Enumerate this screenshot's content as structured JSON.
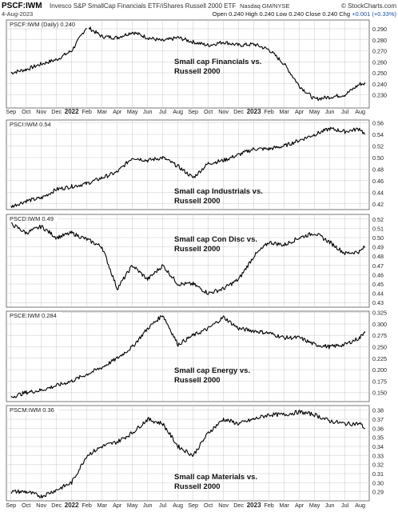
{
  "header": {
    "symbol": "PSCF:IWM",
    "description": "Invesco S&P SmallCap Financials ETF/iShares Russell 2000 ETF",
    "exchange": "Nasdaq GM/NYSE",
    "watermark": "© StockCharts.com",
    "date": "4-Aug-2023",
    "quote": {
      "open_label": "Open",
      "open": "0.240",
      "high_label": "High",
      "high": "0.240",
      "low_label": "Low",
      "low": "0.240",
      "close_label": "Close",
      "close": "0.240",
      "chg_label": "Chg",
      "chg": "+0.001 (+0.33%)"
    }
  },
  "colors": {
    "line": "#000000",
    "grid": "#c8c8c8",
    "border": "#555555",
    "quote_up": "#1a4fa0"
  },
  "x_axis": {
    "labels": [
      "Sep",
      "Oct",
      "Nov",
      "Dec",
      "2022",
      "Feb",
      "Mar",
      "Apr",
      "May",
      "Jun",
      "Jul",
      "Aug",
      "Sep",
      "Oct",
      "Nov",
      "Dec",
      "2023",
      "Feb",
      "Mar",
      "Apr",
      "May",
      "Jun",
      "Jul",
      "Aug"
    ],
    "bold_labels": [
      "2022",
      "2023"
    ]
  },
  "chart_data": [
    {
      "type": "line",
      "legend": "PSCF:IWM (Daily) 0.240",
      "annotation": [
        "Small cap Financials vs.",
        "Russell 2000"
      ],
      "ylim": [
        0.218,
        0.298
      ],
      "y_ticks": [
        0.23,
        0.24,
        0.25,
        0.26,
        0.27,
        0.28,
        0.29
      ],
      "y_tick_labels": [
        "0.230",
        "0.240",
        "0.250",
        "0.260",
        "0.270",
        "0.280",
        "0.290"
      ],
      "x": [
        0,
        1,
        2,
        3,
        4,
        5,
        6,
        7,
        8,
        9,
        10,
        11,
        12,
        13,
        14,
        15,
        16,
        17,
        18,
        19,
        20,
        21,
        22,
        23,
        23.3
      ],
      "values": [
        0.25,
        0.253,
        0.258,
        0.262,
        0.27,
        0.292,
        0.283,
        0.282,
        0.287,
        0.282,
        0.279,
        0.282,
        0.278,
        0.275,
        0.278,
        0.275,
        0.276,
        0.271,
        0.258,
        0.238,
        0.226,
        0.228,
        0.23,
        0.24,
        0.24
      ]
    },
    {
      "type": "line",
      "legend": "PSCI:IWM 0.54",
      "annotation": [
        "Small cap Industrials vs.",
        "Russell 2000"
      ],
      "ylim": [
        0.41,
        0.565
      ],
      "y_ticks": [
        0.42,
        0.44,
        0.46,
        0.48,
        0.5,
        0.52,
        0.54,
        0.56
      ],
      "y_tick_labels": [
        "0.42",
        "0.44",
        "0.46",
        "0.48",
        "0.50",
        "0.52",
        "0.54",
        "0.56"
      ],
      "x": [
        0,
        1,
        2,
        3,
        4,
        5,
        6,
        7,
        8,
        9,
        10,
        11,
        12,
        13,
        14,
        15,
        16,
        17,
        18,
        19,
        20,
        21,
        22,
        23,
        23.3
      ],
      "values": [
        0.415,
        0.425,
        0.43,
        0.445,
        0.45,
        0.455,
        0.465,
        0.475,
        0.5,
        0.495,
        0.5,
        0.485,
        0.465,
        0.49,
        0.495,
        0.505,
        0.515,
        0.515,
        0.52,
        0.53,
        0.54,
        0.55,
        0.545,
        0.55,
        0.54
      ]
    },
    {
      "type": "line",
      "legend": "PSCD:IWM 0.49",
      "annotation": [
        "Small cap Con Disc vs.",
        "Russell 2000"
      ],
      "ylim": [
        0.425,
        0.525
      ],
      "y_ticks": [
        0.43,
        0.44,
        0.45,
        0.46,
        0.47,
        0.48,
        0.49,
        0.5,
        0.51,
        0.52
      ],
      "y_tick_labels": [
        "0.43",
        "0.44",
        "0.45",
        "0.46",
        "0.47",
        "0.48",
        "0.49",
        "0.50",
        "0.51",
        "0.52"
      ],
      "x": [
        0,
        1,
        2,
        3,
        4,
        5,
        6,
        7,
        8,
        9,
        10,
        11,
        12,
        13,
        14,
        15,
        16,
        17,
        18,
        19,
        20,
        21,
        22,
        23,
        23.3
      ],
      "values": [
        0.515,
        0.505,
        0.512,
        0.5,
        0.505,
        0.498,
        0.49,
        0.445,
        0.47,
        0.455,
        0.47,
        0.45,
        0.45,
        0.44,
        0.445,
        0.455,
        0.48,
        0.495,
        0.492,
        0.5,
        0.505,
        0.495,
        0.483,
        0.485,
        0.49
      ]
    },
    {
      "type": "line",
      "legend": "PSCE:IWM 0.284",
      "annotation": [
        "Small cap Energy vs.",
        "Russell 2000"
      ],
      "ylim": [
        0.13,
        0.328
      ],
      "y_ticks": [
        0.15,
        0.175,
        0.2,
        0.225,
        0.25,
        0.275,
        0.3,
        0.325
      ],
      "y_tick_labels": [
        "0.150",
        "0.175",
        "0.200",
        "0.225",
        "0.250",
        "0.275",
        "0.300",
        "0.325"
      ],
      "x": [
        0,
        1,
        2,
        3,
        4,
        5,
        6,
        7,
        8,
        9,
        10,
        11,
        12,
        13,
        14,
        15,
        16,
        17,
        18,
        19,
        20,
        21,
        22,
        23,
        23.3
      ],
      "values": [
        0.14,
        0.15,
        0.155,
        0.165,
        0.175,
        0.19,
        0.205,
        0.225,
        0.25,
        0.29,
        0.32,
        0.255,
        0.275,
        0.29,
        0.315,
        0.29,
        0.285,
        0.28,
        0.27,
        0.27,
        0.255,
        0.25,
        0.255,
        0.27,
        0.284
      ]
    },
    {
      "type": "line",
      "legend": "PSCM:IWM 0.36",
      "annotation": [
        "Small cap Materials vs.",
        "Russell 2000"
      ],
      "ylim": [
        0.28,
        0.385
      ],
      "y_ticks": [
        0.29,
        0.3,
        0.31,
        0.32,
        0.33,
        0.34,
        0.35,
        0.36,
        0.37,
        0.38
      ],
      "y_tick_labels": [
        "0.29",
        "0.30",
        "0.31",
        "0.32",
        "0.33",
        "0.34",
        "0.35",
        "0.36",
        "0.37",
        "0.38"
      ],
      "x": [
        0,
        1,
        2,
        3,
        4,
        5,
        6,
        7,
        8,
        9,
        10,
        11,
        12,
        13,
        14,
        15,
        16,
        17,
        18,
        19,
        20,
        21,
        22,
        23,
        23.3
      ],
      "values": [
        0.29,
        0.29,
        0.285,
        0.292,
        0.3,
        0.33,
        0.34,
        0.345,
        0.355,
        0.37,
        0.365,
        0.34,
        0.33,
        0.355,
        0.37,
        0.365,
        0.37,
        0.375,
        0.375,
        0.378,
        0.375,
        0.368,
        0.365,
        0.365,
        0.36
      ]
    }
  ]
}
